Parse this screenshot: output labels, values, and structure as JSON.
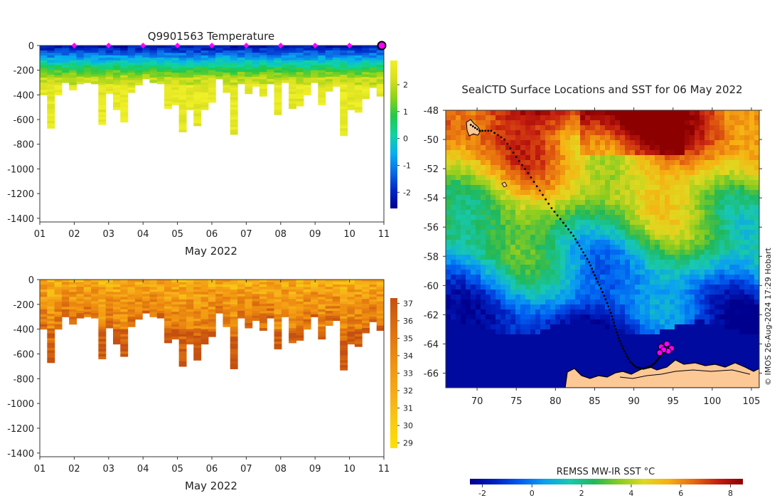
{
  "colors": {
    "temp_ramp": [
      "#00008f",
      "#0028c8",
      "#0a6fe6",
      "#08b0f0",
      "#10d4a0",
      "#22c84a",
      "#8ed21a",
      "#d8e020",
      "#f0f028"
    ],
    "sal_ramp": [
      "#ffe000",
      "#f9cc10",
      "#f6b01a",
      "#f39a12",
      "#e88210",
      "#d86a10",
      "#c55010"
    ],
    "sst_ramp": [
      "#00008f",
      "#0020c0",
      "#005cf0",
      "#0aa0f0",
      "#18c8b0",
      "#20b85a",
      "#88cc20",
      "#e0d820",
      "#f6b012",
      "#e66a10",
      "#c41e10",
      "#8c0000"
    ],
    "profile_marker": "#ff00ff",
    "land": "#fcc896"
  },
  "chart_data": [
    {
      "id": "temperature-section",
      "type": "heatmap",
      "title": "Q9901563  Temperature",
      "xlabel": "May 2022",
      "x_ticks": [
        "01",
        "02",
        "03",
        "04",
        "05",
        "06",
        "07",
        "08",
        "09",
        "10",
        "11"
      ],
      "xlim": [
        1,
        11
      ],
      "ylim": [
        -1430,
        0
      ],
      "y_ticks": [
        0,
        -200,
        -400,
        -600,
        -800,
        -1000,
        -1200,
        -1400
      ],
      "y_tick_labels": [
        "0",
        "-200",
        "-400",
        "-600",
        "-800",
        "-1000",
        "-1200",
        "-1400"
      ],
      "colorbar_ticks": [
        "2",
        "1",
        "0",
        "-1",
        "-2"
      ],
      "colorbar_range": [
        -2.6,
        2.9
      ],
      "marker_days": [
        2,
        3,
        4,
        5,
        6,
        7,
        8,
        9,
        10
      ],
      "profile_max_depths": [
        400,
        670,
        400,
        300,
        360,
        310,
        300,
        310,
        640,
        390,
        520,
        620,
        380,
        320,
        270,
        300,
        310,
        510,
        480,
        700,
        520,
        650,
        520,
        460,
        270,
        380,
        720,
        310,
        390,
        330,
        410,
        310,
        560,
        300,
        510,
        490,
        400,
        300,
        480,
        370,
        330,
        730,
        520,
        540,
        430,
        340,
        410
      ]
    },
    {
      "id": "salinity-section",
      "type": "heatmap",
      "title": "",
      "xlabel": "May 2022",
      "x_ticks": [
        "01",
        "02",
        "03",
        "04",
        "05",
        "06",
        "07",
        "08",
        "09",
        "10",
        "11"
      ],
      "xlim": [
        1,
        11
      ],
      "ylim": [
        -1430,
        0
      ],
      "y_ticks": [
        0,
        -200,
        -400,
        -600,
        -800,
        -1000,
        -1200,
        -1400
      ],
      "y_tick_labels": [
        "0",
        "-200",
        "-400",
        "-600",
        "-800",
        "-1000",
        "-1200",
        "-1400"
      ],
      "colorbar_ticks": [
        "37",
        "36",
        "35",
        "34",
        "33",
        "32",
        "31",
        "30",
        "29"
      ],
      "colorbar_range": [
        28.7,
        37.3
      ]
    },
    {
      "id": "sst-map",
      "type": "heatmap",
      "title": "SealCTD Surface Locations and SST for 06 May 2022",
      "x_ticks": [
        "70",
        "75",
        "80",
        "85",
        "90",
        "95",
        "100",
        "105"
      ],
      "x_tick_values": [
        70,
        75,
        80,
        85,
        90,
        95,
        100,
        105
      ],
      "xlim": [
        66,
        106
      ],
      "y_ticks": [
        "-48",
        "-50",
        "-52",
        "-54",
        "-56",
        "-58",
        "-60",
        "-62",
        "-64",
        "-66"
      ],
      "y_tick_values": [
        -48,
        -50,
        -52,
        -54,
        -56,
        -58,
        -60,
        -62,
        -64,
        -66
      ],
      "ylim": [
        -67,
        -48
      ],
      "track": [
        [
          69.2,
          -49.0
        ],
        [
          70.3,
          -49.4
        ],
        [
          71.8,
          -49.4
        ],
        [
          73.5,
          -50.0
        ],
        [
          75,
          -51.2
        ],
        [
          76.5,
          -52.3
        ],
        [
          78,
          -53.5
        ],
        [
          79.5,
          -54.7
        ],
        [
          81,
          -55.7
        ],
        [
          82.3,
          -56.6
        ],
        [
          83.3,
          -57.5
        ],
        [
          84.3,
          -58.4
        ],
        [
          85,
          -59.3
        ],
        [
          85.8,
          -60.2
        ],
        [
          86.6,
          -61.2
        ],
        [
          87.2,
          -62.1
        ],
        [
          87.7,
          -63.0
        ],
        [
          88.2,
          -63.8
        ],
        [
          88.8,
          -64.5
        ],
        [
          89.5,
          -65.2
        ],
        [
          90.3,
          -65.6
        ],
        [
          91.2,
          -65.7
        ],
        [
          92,
          -65.6
        ],
        [
          92.7,
          -65.3
        ],
        [
          93.3,
          -64.9
        ],
        [
          93.8,
          -64.6
        ]
      ],
      "recent_positions": [
        [
          93.5,
          -64.2
        ],
        [
          94.2,
          -64.0
        ],
        [
          94.8,
          -64.3
        ],
        [
          94.4,
          -64.5
        ],
        [
          93.8,
          -64.4
        ],
        [
          93.3,
          -64.6
        ]
      ],
      "colorbar_label": "REMSS MW-IR SST °C",
      "colorbar_ticks": [
        "-2",
        "0",
        "2",
        "4",
        "6",
        "8"
      ],
      "colorbar_tick_values": [
        -2,
        0,
        2,
        4,
        6,
        8
      ],
      "colorbar_range": [
        -2.5,
        8.5
      ]
    }
  ],
  "credit": "© IMOS 26-Aug-2024 17:29 Hobart"
}
